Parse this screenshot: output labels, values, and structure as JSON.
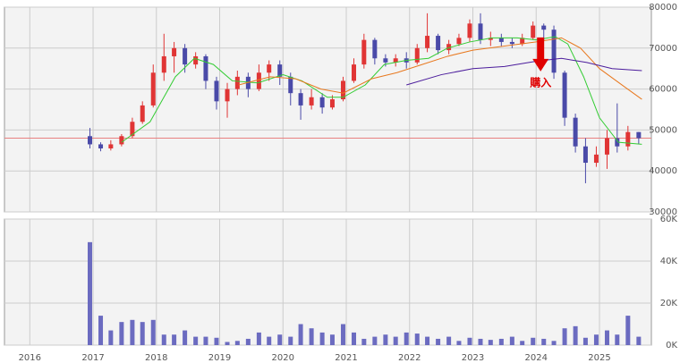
{
  "chart_data": [
    {
      "type": "candlestick",
      "xlim": [
        2015.6,
        2025.82
      ],
      "xticks": [
        2016,
        2017,
        2018,
        2019,
        2020,
        2021,
        2022,
        2023,
        2024,
        2025
      ],
      "ylim": [
        30000,
        80000
      ],
      "yticks": [
        30000,
        40000,
        50000,
        60000,
        70000,
        80000
      ],
      "grid": true,
      "up_color": "#e03535",
      "down_color": "#4a4aa8",
      "x": [
        2016.95,
        2017.12,
        2017.28,
        2017.45,
        2017.62,
        2017.78,
        2017.95,
        2018.12,
        2018.28,
        2018.45,
        2018.62,
        2018.78,
        2018.95,
        2019.12,
        2019.28,
        2019.45,
        2019.62,
        2019.78,
        2019.95,
        2020.12,
        2020.28,
        2020.45,
        2020.62,
        2020.78,
        2020.95,
        2021.12,
        2021.28,
        2021.45,
        2021.62,
        2021.78,
        2021.95,
        2022.12,
        2022.28,
        2022.45,
        2022.62,
        2022.78,
        2022.95,
        2023.12,
        2023.28,
        2023.45,
        2023.62,
        2023.78,
        2023.95,
        2024.12,
        2024.28,
        2024.45,
        2024.62,
        2024.78,
        2024.95,
        2025.12,
        2025.28,
        2025.45,
        2025.62
      ],
      "open": [
        48500,
        46500,
        45500,
        46500,
        48500,
        52000,
        56000,
        64000,
        68000,
        70000,
        66000,
        68000,
        62000,
        57000,
        60000,
        63000,
        60000,
        64000,
        66000,
        63000,
        59000,
        56000,
        58000,
        55500,
        57500,
        62000,
        66000,
        72000,
        67500,
        66500,
        67500,
        66500,
        70000,
        73000,
        69500,
        71000,
        72500,
        76000,
        72000,
        72500,
        71500,
        71000,
        72500,
        75500,
        74500,
        64000,
        53000,
        46000,
        42000,
        44000,
        48000,
        46000,
        49500
      ],
      "close": [
        46500,
        45500,
        46500,
        48500,
        52000,
        56000,
        64000,
        68000,
        70000,
        66000,
        68000,
        62000,
        57000,
        60000,
        63000,
        60000,
        64000,
        66000,
        63000,
        59000,
        56000,
        58000,
        55500,
        57500,
        62000,
        66000,
        72000,
        67500,
        66500,
        67500,
        66500,
        70000,
        73000,
        69500,
        71000,
        72500,
        76000,
        72000,
        72500,
        71500,
        71000,
        72500,
        75500,
        74500,
        64000,
        53000,
        46000,
        42000,
        44000,
        48000,
        46000,
        49500,
        48000
      ],
      "high": [
        50500,
        47000,
        47500,
        49000,
        53000,
        57000,
        66000,
        73500,
        71500,
        71000,
        69000,
        68500,
        63000,
        61500,
        64500,
        64000,
        66000,
        67000,
        67000,
        64000,
        60000,
        60000,
        59000,
        58500,
        63000,
        67500,
        73500,
        72500,
        68500,
        68500,
        69000,
        71000,
        78500,
        73500,
        72000,
        73500,
        77000,
        78500,
        74000,
        73500,
        72500,
        73500,
        76500,
        76000,
        75500,
        64500,
        54000,
        48000,
        46000,
        50000,
        56500,
        51000,
        49500
      ],
      "low": [
        45500,
        44800,
        45000,
        46000,
        48000,
        51500,
        55500,
        62000,
        64000,
        64000,
        65000,
        60000,
        55000,
        53000,
        58500,
        58000,
        59500,
        62000,
        61000,
        56000,
        52500,
        55000,
        54000,
        55000,
        57000,
        61500,
        65000,
        66000,
        65500,
        65500,
        65000,
        66000,
        69000,
        68500,
        68500,
        70500,
        71500,
        71000,
        70500,
        70500,
        70000,
        70500,
        72000,
        72000,
        62500,
        51000,
        44500,
        37000,
        41000,
        40500,
        44500,
        45000,
        46500
      ],
      "series": [
        {
          "color": "#33cc33",
          "x": [
            2017.45,
            2017.9,
            2018.3,
            2018.6,
            2018.9,
            2019.2,
            2019.6,
            2020.0,
            2020.3,
            2020.7,
            2020.95,
            2021.3,
            2021.6,
            2021.95,
            2022.3,
            2022.6,
            2022.95,
            2023.3,
            2023.7,
            2024.0,
            2024.3,
            2024.5,
            2024.75,
            2025.0,
            2025.3,
            2025.67
          ],
          "values": [
            47000,
            52000,
            63000,
            67500,
            66000,
            62000,
            61500,
            63500,
            62000,
            58000,
            58000,
            61000,
            66000,
            67000,
            67500,
            70000,
            71500,
            72500,
            72500,
            72000,
            72800,
            71000,
            63000,
            53000,
            47000,
            46500
          ]
        },
        {
          "color": "#e8781e",
          "x": [
            2019.3,
            2019.8,
            2020.2,
            2020.6,
            2020.95,
            2021.4,
            2021.8,
            2022.2,
            2022.6,
            2023.0,
            2023.5,
            2024.0,
            2024.4,
            2024.7,
            2025.0,
            2025.4,
            2025.67
          ],
          "values": [
            61000,
            63000,
            62500,
            60000,
            59000,
            62500,
            64000,
            66000,
            68000,
            69500,
            70500,
            71500,
            72500,
            70000,
            65000,
            60500,
            57500
          ]
        },
        {
          "color": "#4b1c9c",
          "x": [
            2021.95,
            2022.5,
            2023.0,
            2023.5,
            2024.0,
            2024.4,
            2024.8,
            2025.2,
            2025.67
          ],
          "values": [
            61000,
            63500,
            65000,
            65500,
            66800,
            67500,
            66500,
            65000,
            64500
          ]
        }
      ],
      "reference_line": {
        "value": 48000,
        "color": "#e88080"
      },
      "annotation": {
        "text": "購入",
        "x": 2024.07,
        "y": 64300,
        "color": "#e00000"
      }
    },
    {
      "type": "bar",
      "color": "#6b6bc0",
      "xlim": [
        2015.6,
        2025.82
      ],
      "xticks": [
        2016,
        2017,
        2018,
        2019,
        2020,
        2021,
        2022,
        2023,
        2024,
        2025
      ],
      "ylim": [
        0,
        60000
      ],
      "yticks": [
        {
          "value": 0,
          "label": "0K"
        },
        {
          "value": 20000,
          "label": "20K"
        },
        {
          "value": 40000,
          "label": "40K"
        },
        {
          "value": 60000,
          "label": "60K"
        }
      ],
      "x": [
        2016.95,
        2017.12,
        2017.28,
        2017.45,
        2017.62,
        2017.78,
        2017.95,
        2018.12,
        2018.28,
        2018.45,
        2018.62,
        2018.78,
        2018.95,
        2019.12,
        2019.28,
        2019.45,
        2019.62,
        2019.78,
        2019.95,
        2020.12,
        2020.28,
        2020.45,
        2020.62,
        2020.78,
        2020.95,
        2021.12,
        2021.28,
        2021.45,
        2021.62,
        2021.78,
        2021.95,
        2022.12,
        2022.28,
        2022.45,
        2022.62,
        2022.78,
        2022.95,
        2023.12,
        2023.28,
        2023.45,
        2023.62,
        2023.78,
        2023.95,
        2024.12,
        2024.28,
        2024.45,
        2024.62,
        2024.78,
        2024.95,
        2025.12,
        2025.28,
        2025.45,
        2025.62
      ],
      "values": [
        49000,
        14000,
        7000,
        11000,
        12000,
        11000,
        12000,
        5000,
        5000,
        7000,
        4000,
        4000,
        3500,
        1500,
        2000,
        3000,
        6000,
        4000,
        5000,
        4000,
        10000,
        8000,
        6000,
        5000,
        10000,
        6000,
        3000,
        4000,
        5000,
        4000,
        6000,
        5500,
        4000,
        3000,
        4000,
        2000,
        3500,
        3000,
        2500,
        3000,
        4000,
        2000,
        3500,
        3000,
        2000,
        8000,
        9000,
        3500,
        5000,
        7000,
        5000,
        14000,
        4000
      ]
    }
  ]
}
